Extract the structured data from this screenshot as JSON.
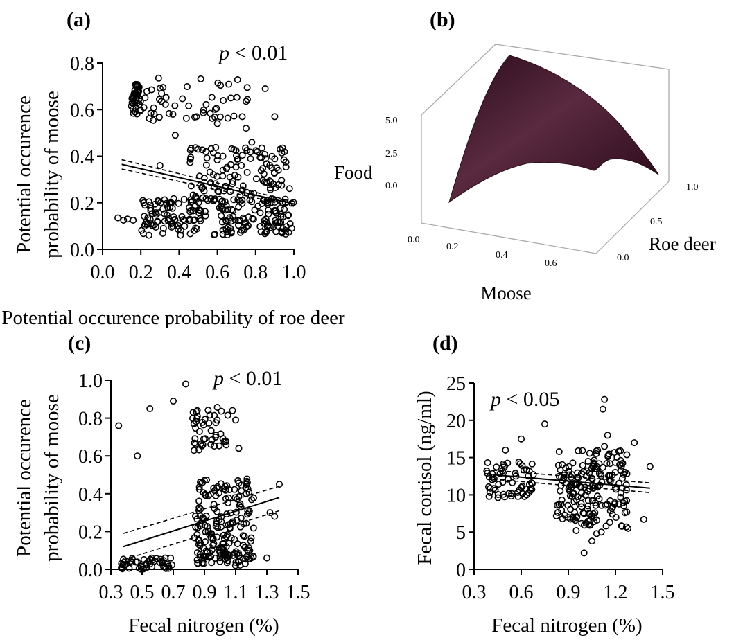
{
  "chart_data": [
    {
      "panel": "(a)",
      "type": "scatter",
      "p_label": {
        "italic": "p",
        "rest": " < 0.01"
      },
      "xlabel": "Potential occurence probability of roe deer",
      "ylabel_lines": [
        "Potential occurence",
        "probability of moose"
      ],
      "xlim": [
        0.0,
        1.0
      ],
      "ylim": [
        0.0,
        0.8
      ],
      "x_ticks": [
        "0.0",
        "0.2",
        "0.4",
        "0.6",
        "0.8",
        "1.0"
      ],
      "y_ticks": [
        "0.0",
        "0.2",
        "0.4",
        "0.6",
        "0.8"
      ],
      "regression": {
        "x": [
          0.1,
          1.0
        ],
        "y": [
          0.365,
          0.195
        ],
        "ci_lower": [
          0.345,
          0.185
        ],
        "ci_upper": [
          0.385,
          0.205
        ]
      },
      "clusters": [
        {
          "x": [
            0.15,
            0.2
          ],
          "y": [
            0.58,
            0.71
          ],
          "n": 40
        },
        {
          "x": [
            0.2,
            0.78
          ],
          "y": [
            0.55,
            0.74
          ],
          "n": 50
        },
        {
          "x": [
            0.45,
            0.98
          ],
          "y": [
            0.22,
            0.44
          ],
          "n": 110
        },
        {
          "x": [
            0.2,
            1.0
          ],
          "y": [
            0.06,
            0.22
          ],
          "n": 220
        }
      ],
      "points": [
        [
          0.08,
          0.135
        ],
        [
          0.11,
          0.125
        ],
        [
          0.13,
          0.13
        ],
        [
          0.16,
          0.125
        ],
        [
          0.3,
          0.36
        ],
        [
          0.38,
          0.49
        ],
        [
          0.6,
          0.54
        ],
        [
          0.78,
          0.46
        ],
        [
          0.75,
          0.52
        ],
        [
          0.73,
          0.57
        ],
        [
          0.85,
          0.69
        ],
        [
          0.9,
          0.57
        ]
      ]
    },
    {
      "panel": "(b)",
      "type": "surface",
      "xlabel": "Moose",
      "ylabel": "Roe deer",
      "zlabel": "Food",
      "x_ticks": [
        "0.0",
        "0.2",
        "0.4",
        "0.6"
      ],
      "y_ticks": [
        "0.0",
        "0.5",
        "1.0"
      ],
      "z_ticks": [
        "0.0",
        "2.5",
        "5.0"
      ],
      "color": "#4a1e34"
    },
    {
      "panel": "(c)",
      "type": "scatter",
      "p_label": {
        "italic": "p",
        "rest": " < 0.01"
      },
      "xlabel": "Fecal nitrogen (%)",
      "ylabel_lines": [
        "Potential occurence",
        "probability of moose"
      ],
      "xlim": [
        0.3,
        1.5
      ],
      "ylim": [
        0.0,
        1.0
      ],
      "x_ticks": [
        "0.3",
        "0.5",
        "0.7",
        "0.9",
        "1.1",
        "1.3",
        "1.5"
      ],
      "y_ticks": [
        "0.0",
        "0.2",
        "0.4",
        "0.6",
        "0.8",
        "1.0"
      ],
      "regression": {
        "x": [
          0.38,
          1.38
        ],
        "y": [
          0.12,
          0.38
        ],
        "ci_lower": [
          0.05,
          0.31
        ],
        "ci_upper": [
          0.19,
          0.44
        ]
      },
      "clusters": [
        {
          "x": [
            0.36,
            0.7
          ],
          "y": [
            0.0,
            0.06
          ],
          "n": 50
        },
        {
          "x": [
            0.82,
            1.05
          ],
          "y": [
            0.62,
            0.86
          ],
          "n": 45
        },
        {
          "x": [
            0.83,
            1.22
          ],
          "y": [
            0.05,
            0.48
          ],
          "n": 160
        },
        {
          "x": [
            0.85,
            1.2
          ],
          "y": [
            0.02,
            0.1
          ],
          "n": 40
        }
      ],
      "points": [
        [
          0.35,
          0.76
        ],
        [
          0.47,
          0.6
        ],
        [
          0.55,
          0.85
        ],
        [
          0.7,
          0.89
        ],
        [
          0.78,
          0.98
        ],
        [
          1.12,
          0.64
        ],
        [
          1.1,
          0.79
        ],
        [
          1.08,
          0.84
        ],
        [
          1.38,
          0.45
        ],
        [
          1.32,
          0.3
        ],
        [
          1.35,
          0.28
        ],
        [
          1.3,
          0.06
        ],
        [
          1.2,
          0.06
        ]
      ]
    },
    {
      "panel": "(d)",
      "type": "scatter",
      "p_label": {
        "italic": "p",
        "rest": " < 0.05"
      },
      "xlabel": "Fecal nitrogen (%)",
      "ylabel_lines": [
        "Fecal cortisol (ng/ml)"
      ],
      "xlim": [
        0.3,
        1.5
      ],
      "ylim": [
        0,
        25
      ],
      "x_ticks": [
        "0.3",
        "0.6",
        "0.9",
        "1.2",
        "1.5"
      ],
      "y_ticks": [
        "0",
        "5",
        "10",
        "15",
        "20",
        "25"
      ],
      "regression": {
        "x": [
          0.42,
          1.42
        ],
        "y": [
          12.7,
          10.9
        ],
        "ci_lower": [
          12.1,
          10.3
        ],
        "ci_upper": [
          13.3,
          11.6
        ]
      },
      "clusters": [
        {
          "x": [
            0.38,
            0.68
          ],
          "y": [
            9.5,
            14.5
          ],
          "n": 60
        },
        {
          "x": [
            0.82,
            1.28
          ],
          "y": [
            5.5,
            16.0
          ],
          "n": 190
        }
      ],
      "points": [
        [
          0.6,
          17.5
        ],
        [
          0.5,
          16.0
        ],
        [
          0.75,
          19.5
        ],
        [
          1.13,
          22.8
        ],
        [
          1.12,
          21.5
        ],
        [
          1.13,
          16.5
        ],
        [
          1.15,
          18.0
        ],
        [
          1.32,
          17.0
        ],
        [
          1.42,
          13.8
        ],
        [
          1.28,
          5.5
        ],
        [
          1.27,
          5.7
        ],
        [
          1.38,
          6.7
        ],
        [
          1.0,
          2.2
        ],
        [
          1.05,
          3.8
        ],
        [
          1.08,
          4.8
        ],
        [
          1.05,
          7.2
        ],
        [
          0.95,
          5.2
        ],
        [
          1.11,
          5.0
        ]
      ]
    }
  ]
}
